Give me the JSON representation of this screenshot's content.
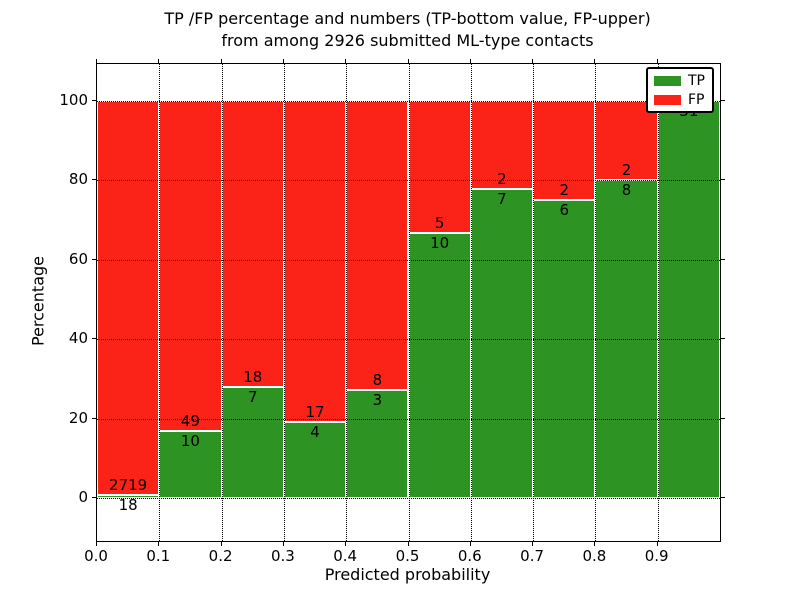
{
  "title": {
    "line1": "TP /FP percentage and numbers (TP-bottom value, FP-upper)",
    "line2": "from among 2926 submitted ML-type contacts"
  },
  "chart_data": {
    "type": "bar",
    "stacked": true,
    "normalized": "each bin scaled to 100%",
    "title": "TP /FP percentage and numbers (TP-bottom value, FP-upper) from among 2926 submitted ML-type contacts",
    "xlabel": "Predicted probability",
    "ylabel": "Percentage",
    "total_contacts": 2926,
    "bin_width": 0.1,
    "bin_starts": [
      0.0,
      0.1,
      0.2,
      0.3,
      0.4,
      0.5,
      0.6,
      0.7,
      0.8,
      0.9
    ],
    "series": [
      {
        "name": "TP",
        "values": [
          18,
          10,
          7,
          4,
          3,
          10,
          7,
          6,
          8,
          31
        ]
      },
      {
        "name": "FP",
        "values": [
          2719,
          49,
          18,
          17,
          8,
          5,
          2,
          2,
          2,
          0
        ]
      }
    ],
    "tp_percent_per_bin": [
      0.66,
      16.95,
      28.0,
      19.05,
      27.27,
      66.67,
      77.78,
      75.0,
      80.0,
      100.0
    ],
    "xticks": [
      "0.0",
      "0.1",
      "0.2",
      "0.3",
      "0.4",
      "0.5",
      "0.6",
      "0.7",
      "0.8",
      "0.9"
    ],
    "yticks": [
      "0",
      "20",
      "40",
      "60",
      "80",
      "100"
    ],
    "xlim": [
      0.0,
      1.0
    ],
    "ylim": [
      -11,
      109
    ],
    "grid": "dotted-black",
    "legend": {
      "position": "upper-right",
      "entries": [
        {
          "label": "TP",
          "color": "#2d9323"
        },
        {
          "label": "FP",
          "color": "#fb2318"
        }
      ]
    },
    "colors": {
      "tp": "#2d9323",
      "fp": "#fb2318",
      "bar_edge": "#ffffff",
      "text": "#000000"
    }
  }
}
